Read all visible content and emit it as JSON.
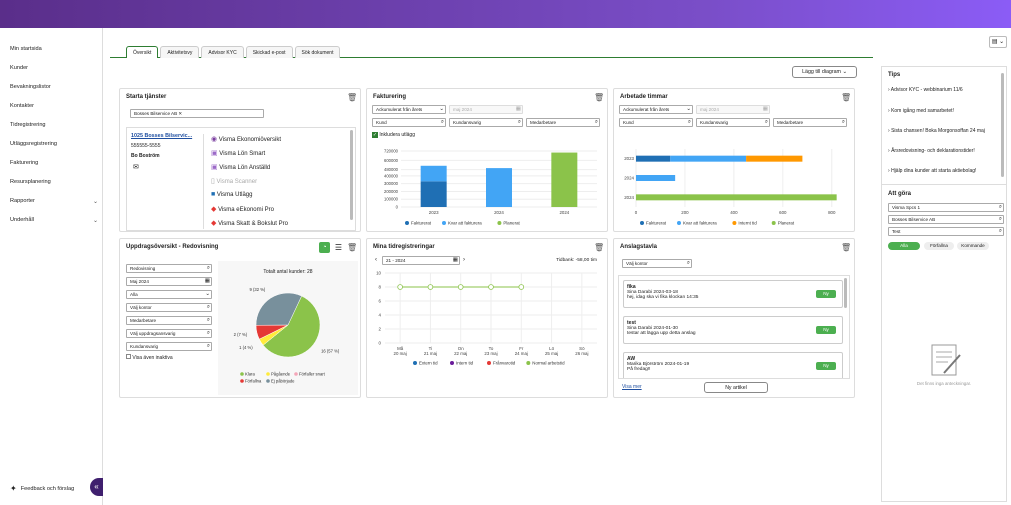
{
  "sidebar": {
    "items": [
      {
        "label": "Min startsida"
      },
      {
        "label": "Kunder"
      },
      {
        "label": "Bevakningslistor"
      },
      {
        "label": "Kontakter"
      },
      {
        "label": "Tidregistrering"
      },
      {
        "label": "Utläggsregistrering"
      },
      {
        "label": "Fakturering"
      },
      {
        "label": "Resursplanering"
      },
      {
        "label": "Rapporter"
      },
      {
        "label": "Underhåll"
      }
    ],
    "feedback": "Feedback och förslag"
  },
  "tabs": [
    "Översikt",
    "Aktivitetsvy",
    "Advisor KYC",
    "Skickad e-post",
    "Sök dokument"
  ],
  "add_chart": "Lägg till diagram",
  "services": {
    "title": "Starta tjänster",
    "filter_chip": "Bosses Bilservice AB",
    "client_name": "1025 Bosses Bilservic...",
    "client_phone": "555555-5555",
    "client_contact": "Bo Boström",
    "apps": [
      "Visma Ekonomiöversikt",
      "Visma Lön Smart",
      "Visma Lön Anställd",
      "Visma Scanner",
      "Visma Utlägg",
      "Visma eEkonomi Pro",
      "Visma Skatt & Bokslut Pro"
    ]
  },
  "invoicing": {
    "title": "Fakturering",
    "select1": "Ackumulerat från årets",
    "date": "maj 2024",
    "f1": "Kund",
    "f2": "Kundansvarig",
    "f3": "Medarbetare",
    "include": "Inkludera utlägg"
  },
  "hours": {
    "title": "Arbetade timmar",
    "select1": "Ackumulerat från årets",
    "date": "maj 2024",
    "f1": "Kund",
    "f2": "Kundansvarig",
    "f3": "Medarbetare"
  },
  "assignments": {
    "title": "Uppdragsöversikt - Redovisning",
    "fields": [
      "Redovisning",
      "Maj 2024",
      "Alla",
      "Välj kontor",
      "Medarbetare",
      "Välj uppdragsansvarig",
      "Kundansvarig"
    ],
    "show_inactive": "Visa även inaktiva"
  },
  "time": {
    "title": "Mina tidregistreringar",
    "week": "21 - 2024",
    "balance": "Tidbank: -58,00 tim"
  },
  "board": {
    "title": "Anslagstavla",
    "office": "Välj kontor",
    "items": [
      {
        "title": "fika",
        "by": "Sina Darabi 2024-03-18",
        "text": "hej, idag ska vi fika klockan 14:35",
        "badge": "Ny"
      },
      {
        "title": "test",
        "by": "Sina Darabi 2024-01-30",
        "text": "testar att lägga upp detta anslag",
        "badge": "Ny"
      },
      {
        "title": "AW",
        "by": "Marika Björström 2024-01-19",
        "text": "På fredag!!",
        "badge": "Ny"
      }
    ],
    "more": "Visa mer",
    "new_article": "Ny artikel"
  },
  "tips": {
    "title": "Tips",
    "items": [
      "Advisor KYC - webbinarium 11/6",
      "Kom igång med samarbetet!",
      "Sista chansen! Boka Morgonsoffan 24 maj",
      "Årsredovisning- och deklarationstider!",
      "Hjälp dina kunder att starta aktiebolag!"
    ],
    "todo_title": "Att göra",
    "todo_fields": [
      "Visma Spcs 1",
      "Bosses Bilservice AB",
      "Test"
    ],
    "filters": [
      "Alla",
      "Förfallna",
      "Kommande"
    ],
    "empty": "Det finns inga anteckningar."
  },
  "chart_data": [
    {
      "type": "bar",
      "title": "Fakturering",
      "categories": [
        "2023",
        "2024",
        "2024"
      ],
      "ylim": [
        0,
        720000
      ],
      "yticks": [
        "720000",
        "600000",
        "480000",
        "400000",
        "300000",
        "200000",
        "100000",
        "0"
      ],
      "series": [
        {
          "name": "Fakturerat",
          "color": "#1f6fb4",
          "values": [
            330000,
            0,
            0
          ]
        },
        {
          "name": "Kvar att fakturera",
          "color": "#42a5f5",
          "values": [
            200000,
            500000,
            0
          ]
        },
        {
          "name": "Planerat",
          "color": "#8bc34a",
          "values": [
            0,
            0,
            700000
          ]
        }
      ]
    },
    {
      "type": "bar",
      "title": "Arbetade timmar",
      "orientation": "horizontal",
      "categories": [
        "2023",
        "2024",
        "2024"
      ],
      "xlim": [
        0,
        850
      ],
      "xticks": [
        "0",
        "200",
        "400",
        "600",
        "800"
      ],
      "series": [
        {
          "name": "Fakturerat",
          "color": "#1f6fb4",
          "values": [
            140,
            0,
            0
          ]
        },
        {
          "name": "Kvar att fakturera",
          "color": "#42a5f5",
          "values": [
            310,
            160,
            0
          ]
        },
        {
          "name": "Internt tid",
          "color": "#ff9800",
          "values": [
            230,
            0,
            0
          ]
        },
        {
          "name": "Planerat",
          "color": "#8bc34a",
          "values": [
            0,
            0,
            820
          ]
        }
      ]
    },
    {
      "type": "pie",
      "title": "Totalt antal kunder: 28",
      "series": [
        {
          "name": "Klara",
          "color": "#8bc34a",
          "value": 16,
          "label": "16 (57 %)"
        },
        {
          "name": "Pågående",
          "color": "#ffeb3b",
          "value": 1,
          "label": "1 (4 %)"
        },
        {
          "name": "Förfaller snart",
          "color": "#f4a6b8",
          "value": 0,
          "label": ""
        },
        {
          "name": "Förfallna",
          "color": "#e53935",
          "value": 2,
          "label": "2 (7 %)"
        },
        {
          "name": "Ej påbörjade",
          "color": "#78909c",
          "value": 9,
          "label": "9 (32 %)"
        }
      ]
    },
    {
      "type": "line",
      "title": "Mina tidregistreringar",
      "categories": [
        "Må\n20 maj",
        "Ti\n21 maj",
        "On\n22 maj",
        "To\n23 maj",
        "Fr\n24 maj",
        "Lö\n25 maj",
        "Sö\n26 maj"
      ],
      "ylim": [
        0,
        10
      ],
      "yticks": [
        "10",
        "8",
        "6",
        "4",
        "2",
        "0"
      ],
      "series": [
        {
          "name": "Normal arbetstid",
          "color": "#8bc34a",
          "values": [
            8,
            8,
            8,
            8,
            8,
            null,
            null
          ]
        }
      ],
      "legend": [
        {
          "name": "Extern tid",
          "color": "#1f6fb4"
        },
        {
          "name": "Intern tid",
          "color": "#6a1b9a"
        },
        {
          "name": "Frånvarotid",
          "color": "#e53935"
        },
        {
          "name": "Normal arbetstid",
          "color": "#8bc34a"
        }
      ]
    }
  ]
}
